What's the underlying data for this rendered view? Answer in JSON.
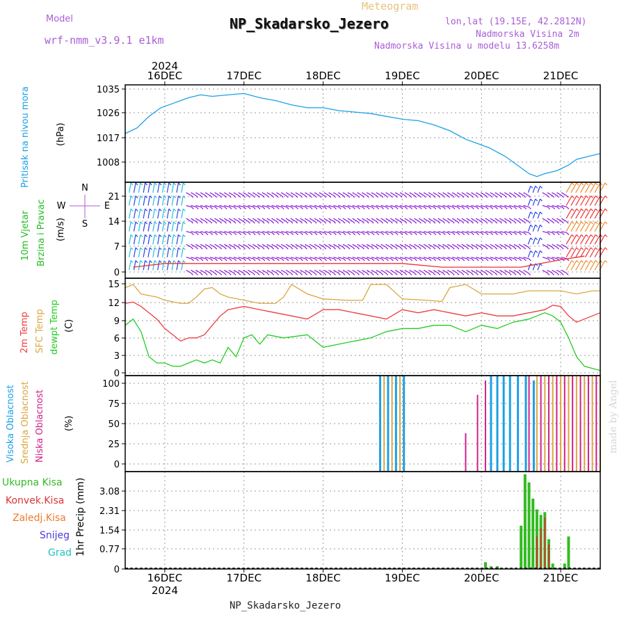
{
  "header": {
    "model_label": "Model",
    "model_name": "wrf-nmm_v3.9.1 e1km",
    "meteogram": "Meteogram",
    "station": "NP_Skadarsko_Jezero",
    "lonlat": "lon,lat (19.15E, 42.2812N)",
    "height": "Nadmorska Visina 2m",
    "model_height": "Nadmorska Visina u modelu 13.6258m",
    "footer": "NP_Skadarsko_Jezero",
    "credit": "made by Angel"
  },
  "colors": {
    "pressure": "#1aa0e6",
    "temp2m": "#ee3c3c",
    "sfc": "#dba640",
    "dewpt": "#22cc22",
    "wind_purple": "#8a1ad8",
    "wind_blue": "#2a40e6",
    "wind_cyan": "#20c0d8",
    "wind_red": "#ee3030",
    "wind_orange": "#f08a2a",
    "wind_green": "#22bb66",
    "high_cloud": "#1aa0e6",
    "mid_cloud": "#dba640",
    "low_cloud": "#d0208a",
    "total_precip": "#33bb22",
    "conv_precip": "#dd3333",
    "frz_precip": "#f07a2a",
    "snow": "#4a3ae0",
    "hail": "#22c0c0"
  },
  "axis": {
    "year": "2024",
    "dates": [
      "16DEC",
      "17DEC",
      "18DEC",
      "19DEC",
      "20DEC",
      "21DEC"
    ],
    "x_range_days": [
      -0.5,
      5.5
    ]
  },
  "panels": {
    "pressure": {
      "label": "Pritisak na nivou mora",
      "unit": "(hPa)",
      "ticks": [
        "1008",
        "1017",
        "1026",
        "1035"
      ]
    },
    "wind": {
      "label1": "10m Vjetar",
      "label2": "Brzina i Pravac",
      "unit": "(m/s)",
      "ticks": [
        "0",
        "7",
        "14",
        "21"
      ],
      "compass": {
        "n": "N",
        "s": "S",
        "e": "E",
        "w": "W"
      }
    },
    "temp": {
      "label1": "2m Temp",
      "label2": "SFC Temp",
      "label3": "dewpt Temp",
      "unit": "(C)",
      "ticks": [
        "0",
        "3",
        "6",
        "9",
        "12",
        "15"
      ]
    },
    "cloud": {
      "label1": "Visoka Oblacnost",
      "label2": "Srednja Oblacnost",
      "label3": "Niska Oblacnost",
      "unit": "(%)",
      "ticks": [
        "0",
        "25",
        "50",
        "75",
        "100"
      ]
    },
    "precip": {
      "unit": "1hr Precip (mm)",
      "ticks": [
        "0",
        "0.77",
        "1.54",
        "2.31",
        "3.08"
      ],
      "legend": [
        "Ukupna Kisa",
        "Konvek.Kisa",
        "Zaledj.Kisa",
        "Snijeg",
        "Grad"
      ]
    }
  },
  "chart_data": [
    {
      "type": "line",
      "title": "Pritisak na nivou mora",
      "ylabel": "(hPa)",
      "ylim": [
        1003,
        1037
      ],
      "x_unit": "days since 16DEC 00",
      "series": [
        {
          "name": "Pritisak na nivou mora",
          "x": [
            -0.5,
            -0.35,
            -0.2,
            -0.05,
            0.1,
            0.3,
            0.45,
            0.6,
            0.8,
            1.0,
            1.2,
            1.4,
            1.6,
            1.8,
            2.0,
            2.2,
            2.4,
            2.6,
            2.8,
            3.0,
            3.2,
            3.4,
            3.6,
            3.8,
            3.95,
            4.1,
            4.3,
            4.5,
            4.6,
            4.7,
            4.8,
            4.95,
            5.1,
            5.2,
            5.35,
            5.5
          ],
          "y": [
            1020,
            1022,
            1026,
            1029,
            1030.5,
            1032.5,
            1033.5,
            1033,
            1033.5,
            1034,
            1032.5,
            1031.5,
            1030,
            1029,
            1029,
            1028,
            1027.5,
            1027,
            1026,
            1025,
            1024.5,
            1023,
            1021,
            1018,
            1016.5,
            1015,
            1012,
            1008,
            1006,
            1005,
            1006,
            1007,
            1009,
            1011,
            1012,
            1013
          ]
        }
      ]
    },
    {
      "type": "scatter",
      "title": "10m Vjetar Brzina i Pravac",
      "ylabel": "(m/s)",
      "ylim": [
        -2,
        24
      ],
      "note": "wind barbs plotted on a grid of model levels",
      "series": [
        {
          "name": "Brzina",
          "x": [
            -0.4,
            0.0,
            0.5,
            1.0,
            1.5,
            2.0,
            2.5,
            3.0,
            3.5,
            4.0,
            4.5,
            5.0,
            5.3
          ],
          "y": [
            1,
            2,
            2,
            2,
            2,
            2,
            2,
            2,
            1,
            1,
            1,
            3,
            4
          ]
        }
      ]
    },
    {
      "type": "line",
      "title": "2m / SFC / dewpt Temp",
      "ylabel": "(C)",
      "ylim": [
        0,
        15.5
      ],
      "series": [
        {
          "name": "2m Temp",
          "x": [
            -0.5,
            -0.4,
            -0.3,
            -0.2,
            -0.1,
            0.0,
            0.1,
            0.2,
            0.3,
            0.4,
            0.5,
            0.6,
            0.7,
            0.8,
            1.0,
            1.2,
            1.4,
            1.6,
            1.8,
            2.0,
            2.2,
            2.4,
            2.6,
            2.8,
            3.0,
            3.2,
            3.4,
            3.6,
            3.8,
            4.0,
            4.2,
            4.4,
            4.6,
            4.8,
            4.9,
            5.0,
            5.1,
            5.2,
            5.3,
            5.5
          ],
          "y": [
            11.5,
            11.7,
            11,
            10,
            9,
            7.5,
            6.5,
            5.5,
            6,
            6,
            6.5,
            8,
            9.5,
            10.5,
            11,
            10.5,
            10,
            9.5,
            9,
            10.5,
            10.5,
            10,
            9.5,
            9,
            10.5,
            10,
            10.5,
            10,
            9.5,
            10,
            9.5,
            9.5,
            10,
            10.5,
            11.2,
            11,
            9.5,
            8.5,
            9,
            10
          ]
        },
        {
          "name": "SFC Temp",
          "x": [
            -0.5,
            -0.4,
            -0.3,
            -0.1,
            0.0,
            0.2,
            0.3,
            0.4,
            0.5,
            0.6,
            0.7,
            0.8,
            1.0,
            1.2,
            1.4,
            1.5,
            1.6,
            1.8,
            2.0,
            2.3,
            2.5,
            2.6,
            2.8,
            3.0,
            3.3,
            3.5,
            3.6,
            3.8,
            4.0,
            4.2,
            4.4,
            4.6,
            4.8,
            5.0,
            5.2,
            5.4,
            5.5
          ],
          "y": [
            14,
            14.5,
            13,
            12.5,
            12,
            11.5,
            11.5,
            12.5,
            13.8,
            14,
            13,
            12.5,
            12,
            11.5,
            11.5,
            12.5,
            14.5,
            13,
            12.2,
            12,
            12,
            14.5,
            14.5,
            12.2,
            12,
            11.8,
            14,
            14.5,
            13,
            13,
            13,
            13.5,
            13.5,
            13.5,
            13,
            13.5,
            13.5
          ]
        },
        {
          "name": "dewpt Temp",
          "x": [
            -0.5,
            -0.4,
            -0.3,
            -0.2,
            -0.1,
            0.0,
            0.1,
            0.2,
            0.3,
            0.4,
            0.5,
            0.6,
            0.7,
            0.8,
            0.9,
            1.0,
            1.1,
            1.2,
            1.3,
            1.5,
            1.8,
            2.0,
            2.2,
            2.4,
            2.6,
            2.8,
            3.0,
            3.2,
            3.4,
            3.6,
            3.8,
            4.0,
            4.2,
            4.4,
            4.6,
            4.7,
            4.8,
            4.9,
            5.0,
            5.1,
            5.2,
            5.3,
            5.5
          ],
          "y": [
            8,
            9,
            7,
            3,
            2,
            2,
            1.5,
            1.5,
            2,
            2.5,
            2,
            2.5,
            2,
            4.5,
            3,
            6,
            6.5,
            5,
            6.5,
            6,
            6.5,
            4.5,
            5,
            5.5,
            6,
            7,
            7.5,
            7.5,
            8,
            8,
            7,
            8,
            7.5,
            8.5,
            9,
            9.5,
            10,
            9.5,
            8.5,
            6,
            3,
            1.5,
            0.8
          ]
        }
      ]
    },
    {
      "type": "bar",
      "title": "Oblacnost",
      "ylabel": "(%)",
      "ylim": [
        0,
        100
      ],
      "series": [
        {
          "name": "Visoka Oblacnost",
          "x": [
            2.72,
            2.82,
            2.92,
            3.02,
            4.12,
            4.2,
            4.28,
            4.36,
            4.46,
            4.56,
            4.66
          ],
          "values": [
            100,
            100,
            100,
            100,
            100,
            100,
            100,
            100,
            100,
            100,
            95
          ]
        },
        {
          "name": "Srednja Oblacnost",
          "x": [
            2.77,
            2.87,
            2.97,
            4.7,
            4.8,
            4.9,
            5.0,
            5.1,
            5.2,
            5.3,
            5.4,
            5.5
          ],
          "values": [
            100,
            100,
            100,
            100,
            100,
            100,
            100,
            100,
            100,
            100,
            100,
            100
          ]
        },
        {
          "name": "Niska Oblacnost",
          "x": [
            3.8,
            3.95,
            4.05,
            4.6,
            4.75,
            4.85,
            4.95,
            5.05,
            5.15,
            5.25,
            5.35,
            5.45
          ],
          "values": [
            40,
            80,
            95,
            100,
            100,
            100,
            100,
            100,
            100,
            100,
            100,
            100
          ]
        }
      ]
    },
    {
      "type": "bar",
      "title": "1hr Precip",
      "ylabel": "1hr Precip (mm)",
      "ylim": [
        0,
        3.6
      ],
      "series": [
        {
          "name": "Ukupna Kisa",
          "x": [
            4.05,
            4.12,
            4.2,
            4.5,
            4.55,
            4.6,
            4.65,
            4.7,
            4.75,
            4.8,
            4.85,
            4.9,
            5.05,
            5.1
          ],
          "values": [
            0.25,
            0.1,
            0.1,
            1.6,
            3.5,
            3.2,
            2.6,
            2.2,
            2.0,
            2.1,
            1.1,
            0.2,
            0.2,
            1.2
          ]
        },
        {
          "name": "Konvek.Kisa",
          "x": [
            4.7,
            4.75,
            4.8,
            4.85
          ],
          "values": [
            1.2,
            1.5,
            1.9,
            0.9
          ]
        }
      ]
    }
  ]
}
